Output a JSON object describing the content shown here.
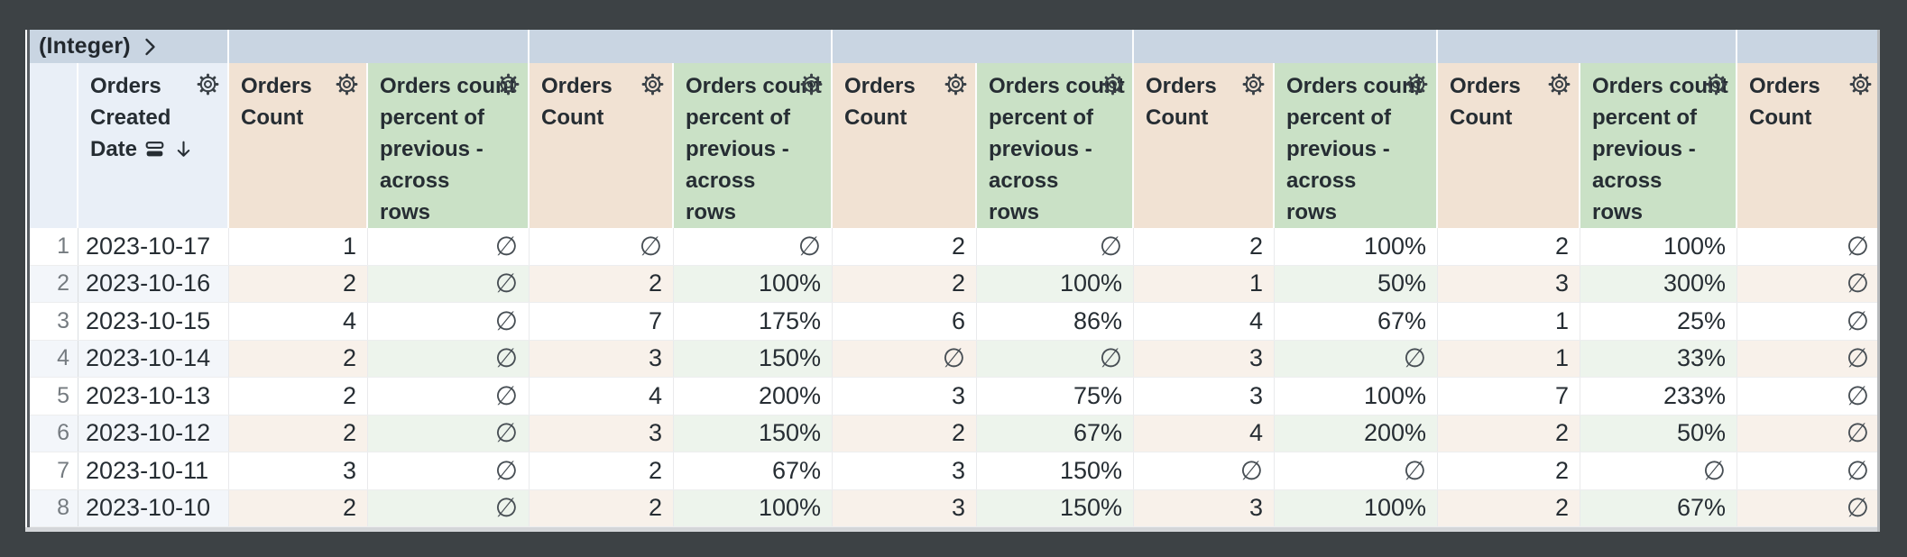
{
  "pivot_band": {
    "label": "(Integer)",
    "chevron_icon": "chevron-right",
    "blank_section_count": 6
  },
  "icons": {
    "gear": "column-gear-icon",
    "chevron": "chevron-right-icon",
    "sort_descending": "sort-desc-icon",
    "group": "column-group-icon"
  },
  "colors": {
    "frame_background": "#3d4245",
    "pivot_band_bg": "#c9d5e2",
    "dimension_header_bg": "#e9eff7",
    "measure_header_bg": "#f1e2d3",
    "calc_header_bg": "#cae1c6",
    "even_row_dim_bg": "#f3f6fa",
    "even_row_measure_bg": "#f8f1ea",
    "even_row_calc_bg": "#edf4ec",
    "text": "#262d33"
  },
  "table": {
    "null_symbol": "∅",
    "columns": [
      {
        "type": "rownum",
        "lines": [],
        "has_gear": false
      },
      {
        "type": "dim",
        "lines": [
          "Orders",
          "Created",
          "Date"
        ],
        "has_gear": true,
        "has_group_icon": true,
        "sort": "desc"
      },
      {
        "type": "measure",
        "lines": [
          "Orders",
          "Count"
        ],
        "has_gear": true
      },
      {
        "type": "calc",
        "lines": [
          "Orders count",
          "percent of",
          "previous -",
          "across",
          "rows"
        ],
        "has_gear": true
      },
      {
        "type": "measure",
        "lines": [
          "Orders",
          "Count"
        ],
        "has_gear": true
      },
      {
        "type": "calc",
        "lines": [
          "Orders count",
          "percent of",
          "previous -",
          "across",
          "rows"
        ],
        "has_gear": true
      },
      {
        "type": "measure",
        "lines": [
          "Orders",
          "Count"
        ],
        "has_gear": true
      },
      {
        "type": "calc",
        "lines": [
          "Orders count",
          "percent of",
          "previous -",
          "across",
          "rows"
        ],
        "has_gear": true
      },
      {
        "type": "measure",
        "lines": [
          "Orders",
          "Count"
        ],
        "has_gear": true
      },
      {
        "type": "calc",
        "lines": [
          "Orders count",
          "percent of",
          "previous -",
          "across",
          "rows"
        ],
        "has_gear": true
      },
      {
        "type": "measure",
        "lines": [
          "Orders",
          "Count"
        ],
        "has_gear": true
      },
      {
        "type": "calc",
        "lines": [
          "Orders count",
          "percent of",
          "previous -",
          "across",
          "rows"
        ],
        "has_gear": true
      },
      {
        "type": "measure",
        "lines": [
          "Orders",
          "Count"
        ],
        "has_gear": true
      }
    ],
    "rows": [
      {
        "cells": [
          "1",
          "2023-10-17",
          "1",
          "∅",
          "∅",
          "∅",
          "2",
          "∅",
          "2",
          "100%",
          "2",
          "100%",
          "∅"
        ]
      },
      {
        "cells": [
          "2",
          "2023-10-16",
          "2",
          "∅",
          "2",
          "100%",
          "2",
          "100%",
          "1",
          "50%",
          "3",
          "300%",
          "∅"
        ]
      },
      {
        "cells": [
          "3",
          "2023-10-15",
          "4",
          "∅",
          "7",
          "175%",
          "6",
          "86%",
          "4",
          "67%",
          "1",
          "25%",
          "∅"
        ]
      },
      {
        "cells": [
          "4",
          "2023-10-14",
          "2",
          "∅",
          "3",
          "150%",
          "∅",
          "∅",
          "3",
          "∅",
          "1",
          "33%",
          "∅"
        ]
      },
      {
        "cells": [
          "5",
          "2023-10-13",
          "2",
          "∅",
          "4",
          "200%",
          "3",
          "75%",
          "3",
          "100%",
          "7",
          "233%",
          "∅"
        ]
      },
      {
        "cells": [
          "6",
          "2023-10-12",
          "2",
          "∅",
          "3",
          "150%",
          "2",
          "67%",
          "4",
          "200%",
          "2",
          "50%",
          "∅"
        ]
      },
      {
        "cells": [
          "7",
          "2023-10-11",
          "3",
          "∅",
          "2",
          "67%",
          "3",
          "150%",
          "∅",
          "∅",
          "2",
          "∅",
          "∅"
        ]
      },
      {
        "cells": [
          "8",
          "2023-10-10",
          "2",
          "∅",
          "2",
          "100%",
          "3",
          "150%",
          "3",
          "100%",
          "2",
          "67%",
          "∅"
        ]
      }
    ]
  }
}
